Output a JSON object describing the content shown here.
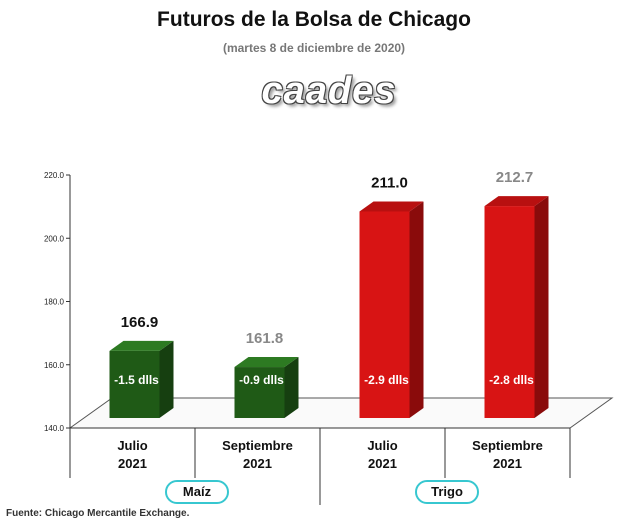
{
  "header": {
    "title": "Futuros de la Bolsa de Chicago",
    "subtitle": "(martes 8 de diciembre de 2020)",
    "logo_text": "caades"
  },
  "footer": {
    "source": "Fuente: Chicago Mercantile Exchange."
  },
  "colors": {
    "maiz_face": "#1f5a16",
    "maiz_side": "#163f10",
    "maiz_top": "#2d7a22",
    "trigo_face": "#d81414",
    "trigo_side": "#8a0b0b",
    "trigo_top": "#b81010",
    "dark_label": "#111111",
    "grey_label": "#888888",
    "pill_border": "#37c7d0"
  },
  "chart_data": {
    "type": "bar",
    "title": "Futuros de la Bolsa de Chicago",
    "subtitle": "(martes 8 de diciembre de 2020)",
    "ylim": [
      140,
      220
    ],
    "yticks": [
      "140.0",
      "160.0",
      "180.0",
      "200.0",
      "220.0"
    ],
    "ytick_values": [
      140,
      160,
      180,
      200,
      220
    ],
    "categories": [
      {
        "line1": "Julio",
        "line2": "2021"
      },
      {
        "line1": "Septiembre",
        "line2": "2021"
      },
      {
        "line1": "Julio",
        "line2": "2021"
      },
      {
        "line1": "Septiembre",
        "line2": "2021"
      }
    ],
    "values": [
      166.9,
      161.8,
      211.0,
      212.7
    ],
    "value_labels": [
      "166.9",
      "161.8",
      "211.0",
      "212.7"
    ],
    "change_labels": [
      "-1.5 dlls",
      "-0.9 dlls",
      "-2.9 dlls",
      "-2.8 dlls"
    ],
    "label_colors": [
      "dark",
      "grey",
      "dark",
      "grey"
    ],
    "bar_groups": [
      "maiz",
      "maiz",
      "trigo",
      "trigo"
    ],
    "groups": [
      {
        "key": "maiz",
        "name": "Maíz"
      },
      {
        "key": "trigo",
        "name": "Trigo"
      }
    ],
    "grid": false
  }
}
